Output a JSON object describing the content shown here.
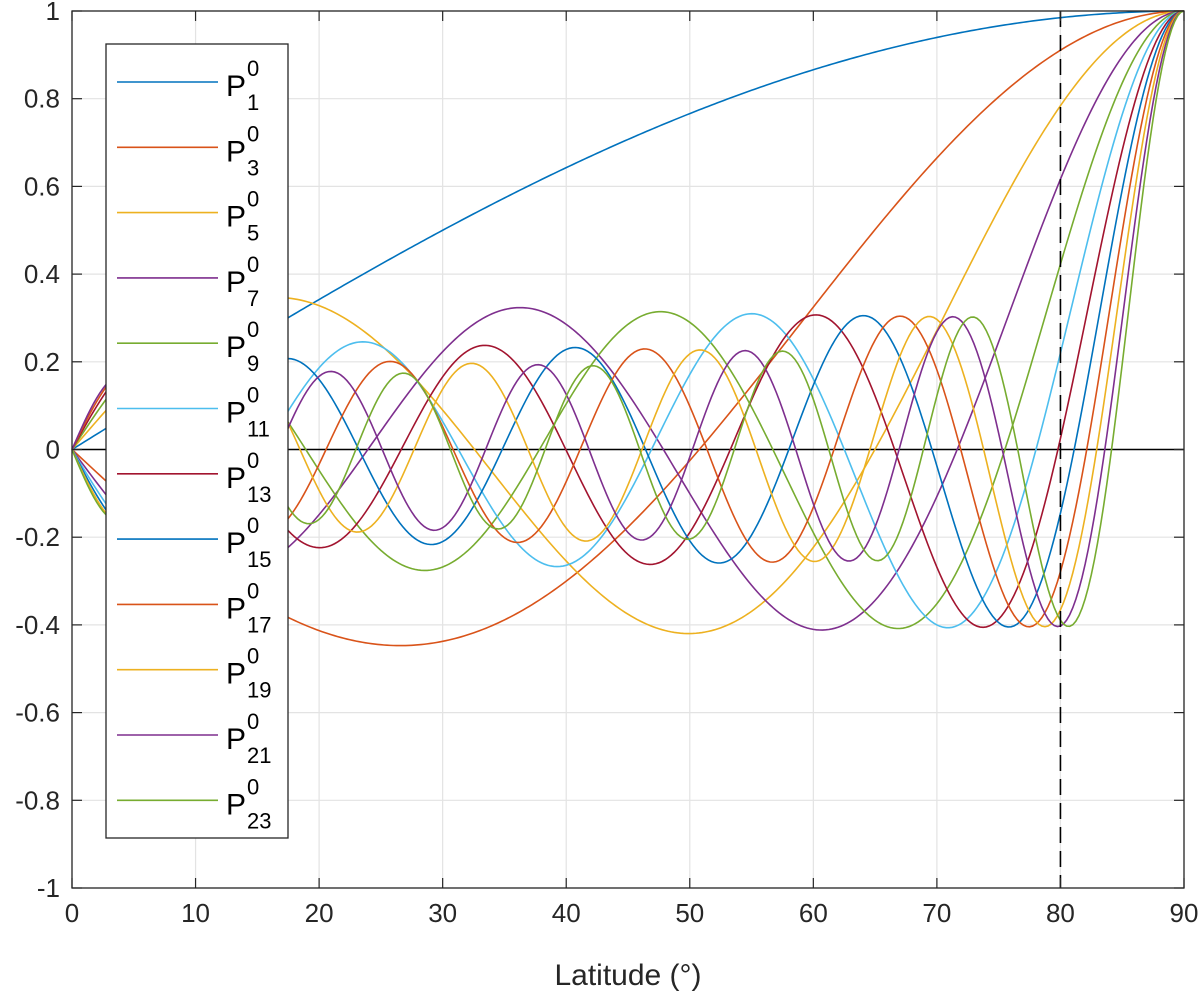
{
  "chart_data": {
    "type": "line",
    "xlabel": "Latitude (°)",
    "ylabel": "",
    "title": "",
    "xlim": [
      0,
      90
    ],
    "ylim": [
      -1,
      1
    ],
    "grid": true,
    "legend_placement": "top-left",
    "x_ticks": [
      "0",
      "10",
      "20",
      "30",
      "40",
      "50",
      "60",
      "70",
      "80",
      "90"
    ],
    "y_ticks": [
      "1",
      "0.8",
      "0.6",
      "0.4",
      "0.2",
      "0",
      "-0.2",
      "-0.4",
      "-0.6",
      "-0.8",
      "-1"
    ],
    "reference_lines": {
      "zero_line_y": 0,
      "dashed_vertical_x": 80
    },
    "sample_step_deg": 0.25,
    "series": [
      {
        "name": "P",
        "sup": "0",
        "sub": "1",
        "degree": 1,
        "color": "#0072BD"
      },
      {
        "name": "P",
        "sup": "0",
        "sub": "3",
        "degree": 3,
        "color": "#D95319"
      },
      {
        "name": "P",
        "sup": "0",
        "sub": "5",
        "degree": 5,
        "color": "#EDB120"
      },
      {
        "name": "P",
        "sup": "0",
        "sub": "7",
        "degree": 7,
        "color": "#7E2F8E"
      },
      {
        "name": "P",
        "sup": "0",
        "sub": "9",
        "degree": 9,
        "color": "#77AC30"
      },
      {
        "name": "P",
        "sup": "0",
        "sub": "11",
        "degree": 11,
        "color": "#4DBEEE"
      },
      {
        "name": "P",
        "sup": "0",
        "sub": "13",
        "degree": 13,
        "color": "#A2142F"
      },
      {
        "name": "P",
        "sup": "0",
        "sub": "15",
        "degree": 15,
        "color": "#0072BD"
      },
      {
        "name": "P",
        "sup": "0",
        "sub": "17",
        "degree": 17,
        "color": "#D95319"
      },
      {
        "name": "P",
        "sup": "0",
        "sub": "19",
        "degree": 19,
        "color": "#EDB120"
      },
      {
        "name": "P",
        "sup": "0",
        "sub": "21",
        "degree": 21,
        "color": "#7E2F8E"
      },
      {
        "name": "P",
        "sup": "0",
        "sub": "23",
        "degree": 23,
        "color": "#77AC30"
      }
    ]
  }
}
